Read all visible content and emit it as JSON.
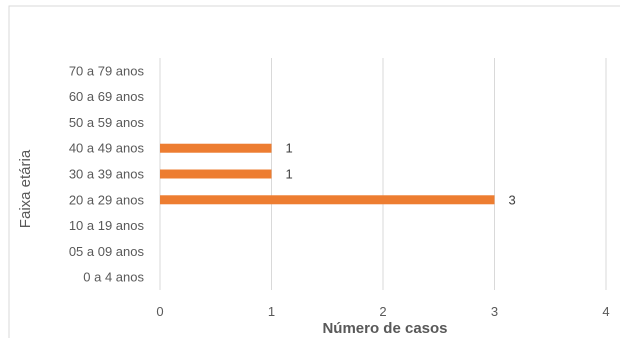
{
  "chart_data": {
    "type": "bar",
    "orientation": "horizontal",
    "categories": [
      "0 a 4 anos",
      "05 a 09 anos",
      "10 a 19 anos",
      "20 a 29 anos",
      "30 a 39 anos",
      "40 a 49 anos",
      "50 a 59 anos",
      "60 a 69 anos",
      "70 a 79 anos"
    ],
    "values": [
      0,
      0,
      0,
      3,
      1,
      1,
      0,
      0,
      0
    ],
    "data_labels": [
      "",
      "",
      "",
      "3",
      "1",
      "1",
      "",
      "",
      ""
    ],
    "xlabel": "Número de casos",
    "ylabel": "Faixa etária",
    "xlim": [
      0,
      4
    ],
    "xticks": [
      "0",
      "1",
      "2",
      "3",
      "4"
    ],
    "grid": true,
    "bar_color": "#ed7d31",
    "grid_color": "#d9d9d9"
  }
}
